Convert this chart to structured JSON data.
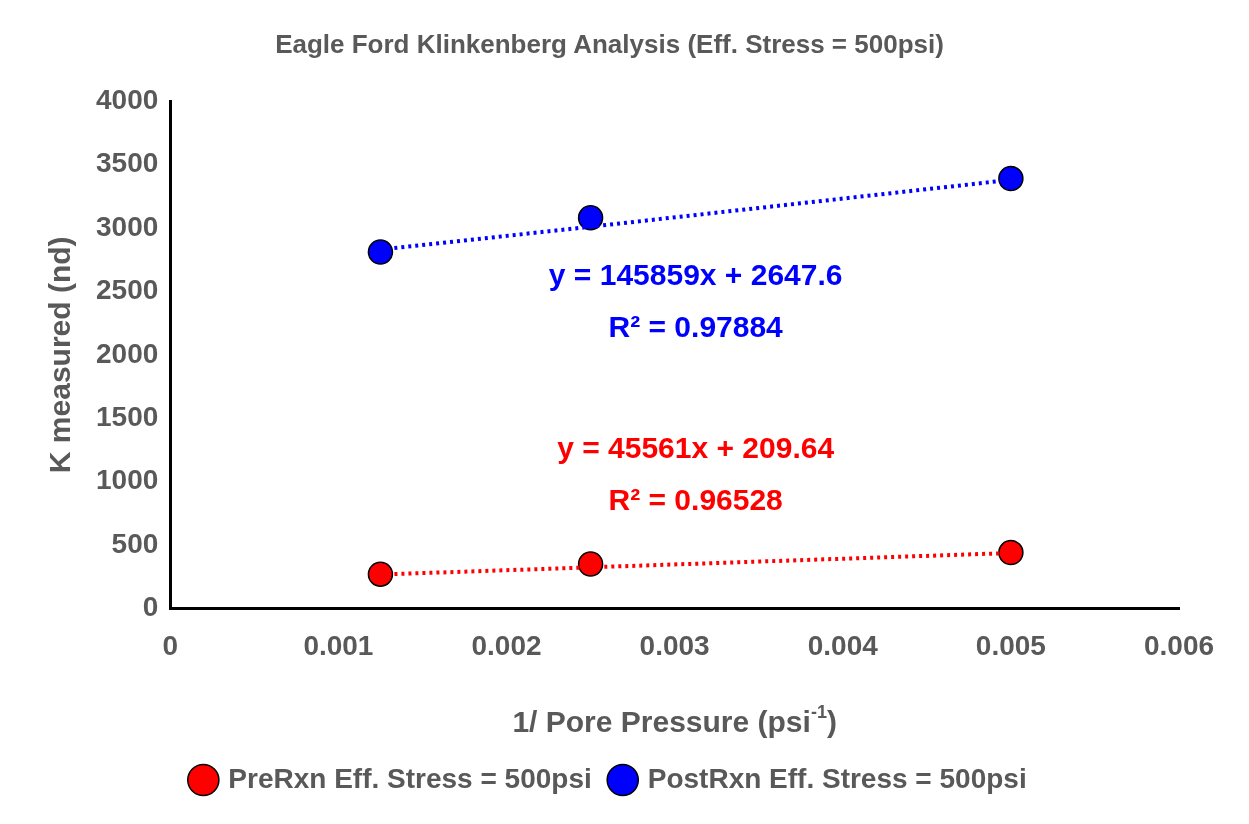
{
  "chart_data": {
    "type": "scatter",
    "title": "Eagle Ford Klinkenberg Analysis (Eff. Stress = 500psi)",
    "xlabel": "1/ Pore Pressure (psi$^{-1}$)",
    "ylabel": "K measured (nd)",
    "x": [
      0.00125,
      0.0025,
      0.005
    ],
    "series": [
      {
        "name": "PreRxn Eff. Stress = 500psi",
        "color": "#ff0000",
        "values": [
          270,
          350,
          440
        ]
      },
      {
        "name": "PostRxn Eff. Stress = 500psi",
        "color": "#0000ff",
        "values": [
          2810,
          3080,
          3390
        ]
      },
      {
        "type": "line",
        "name": "y = 45561x + 209.64\nR² = 0.96528",
        "color": "#ff0000",
        "marker": "none",
        "values": [
          267,
          324,
          437
        ]
      },
      {
        "type": "line",
        "name": "y = 145859x + 2647.6\nR² = 0.97884",
        "color": "#0000ff",
        "marker": "none",
        "values": [
          2830,
          3010,
          3380
        ]
      }
    ],
    "xlim": [
      0,
      0.006
    ],
    "xticks": [
      0,
      0.001,
      0.002,
      0.003,
      0.004,
      0.005,
      0.006
    ],
    "ylim": [
      0,
      4000
    ],
    "yticks": [
      0,
      500,
      1000,
      1500,
      2000,
      2500,
      3000,
      3500,
      4000
    ],
    "grid": false,
    "legend": "bottom",
    "marker": "circle",
    "line_style": "dotted"
  }
}
